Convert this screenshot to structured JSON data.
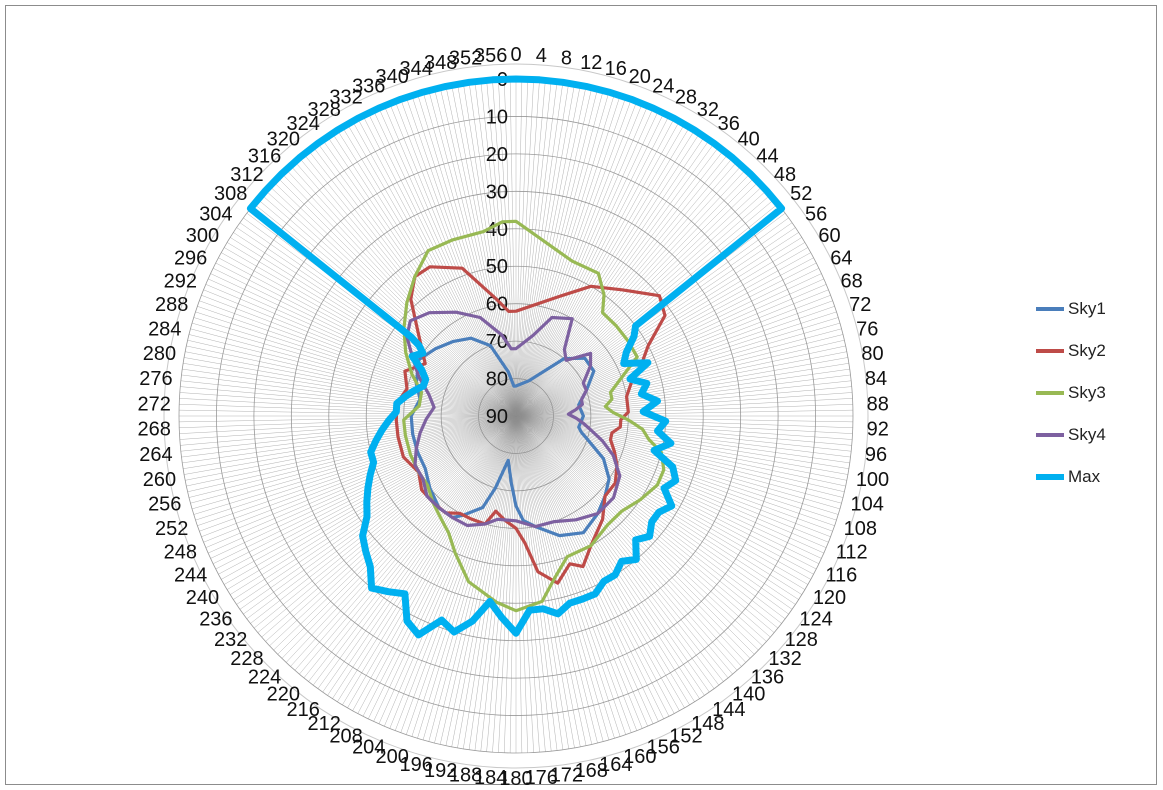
{
  "chart_data": {
    "type": "radar",
    "title": "",
    "angle_ticks": [
      0,
      4,
      8,
      12,
      16,
      20,
      24,
      28,
      32,
      36,
      40,
      44,
      48,
      52,
      56,
      60,
      64,
      68,
      72,
      76,
      80,
      84,
      88,
      92,
      96,
      100,
      104,
      108,
      112,
      116,
      120,
      124,
      128,
      132,
      136,
      140,
      144,
      148,
      152,
      156,
      160,
      164,
      168,
      172,
      176,
      180,
      184,
      188,
      192,
      196,
      200,
      204,
      208,
      212,
      216,
      220,
      224,
      228,
      232,
      236,
      240,
      244,
      248,
      252,
      256,
      260,
      264,
      268,
      272,
      276,
      280,
      284,
      288,
      292,
      296,
      300,
      304,
      308,
      312,
      316,
      320,
      324,
      328,
      332,
      336,
      340,
      344,
      348,
      352,
      356
    ],
    "radial_ticks": [
      0,
      10,
      20,
      30,
      40,
      50,
      60,
      70,
      80,
      90
    ],
    "radial_range": [
      0,
      90
    ],
    "radial_reversed": true,
    "grid": true,
    "legend_position": "right",
    "series": [
      {
        "name": "Sky1",
        "color": "#4a7ebb",
        "points": [
          [
            0,
            82
          ],
          [
            20,
            80
          ],
          [
            40,
            70
          ],
          [
            50,
            66
          ],
          [
            60,
            66
          ],
          [
            70,
            70
          ],
          [
            80,
            73
          ],
          [
            90,
            72
          ],
          [
            100,
            73
          ],
          [
            104,
            72
          ],
          [
            108,
            70
          ],
          [
            116,
            64
          ],
          [
            124,
            60
          ],
          [
            132,
            58
          ],
          [
            140,
            56
          ],
          [
            150,
            54
          ],
          [
            160,
            56
          ],
          [
            170,
            60
          ],
          [
            176,
            62
          ],
          [
            180,
            66
          ],
          [
            184,
            72
          ],
          [
            190,
            78
          ],
          [
            196,
            70
          ],
          [
            200,
            64
          ],
          [
            208,
            60
          ],
          [
            212,
            58
          ],
          [
            220,
            58
          ],
          [
            230,
            60
          ],
          [
            240,
            62
          ],
          [
            250,
            62
          ],
          [
            260,
            62
          ],
          [
            270,
            62
          ],
          [
            280,
            64
          ],
          [
            288,
            62
          ],
          [
            300,
            60
          ],
          [
            310,
            62
          ],
          [
            320,
            64
          ],
          [
            330,
            66
          ],
          [
            340,
            70
          ],
          [
            350,
            78
          ],
          [
            356,
            82
          ]
        ]
      },
      {
        "name": "Sky2",
        "color": "#be4b48",
        "points": [
          [
            0,
            62
          ],
          [
            20,
            56
          ],
          [
            30,
            50
          ],
          [
            40,
            46
          ],
          [
            50,
            40
          ],
          [
            56,
            42
          ],
          [
            62,
            50
          ],
          [
            68,
            54
          ],
          [
            74,
            58
          ],
          [
            80,
            60
          ],
          [
            88,
            60
          ],
          [
            92,
            62
          ],
          [
            96,
            62
          ],
          [
            100,
            64
          ],
          [
            104,
            64
          ],
          [
            110,
            62
          ],
          [
            116,
            60
          ],
          [
            124,
            58
          ],
          [
            132,
            58
          ],
          [
            140,
            54
          ],
          [
            150,
            50
          ],
          [
            156,
            46
          ],
          [
            160,
            48
          ],
          [
            166,
            44
          ],
          [
            172,
            48
          ],
          [
            176,
            56
          ],
          [
            180,
            60
          ],
          [
            186,
            62
          ],
          [
            192,
            64
          ],
          [
            196,
            60
          ],
          [
            204,
            60
          ],
          [
            210,
            60
          ],
          [
            216,
            58
          ],
          [
            224,
            58
          ],
          [
            232,
            58
          ],
          [
            240,
            60
          ],
          [
            250,
            58
          ],
          [
            260,
            58
          ],
          [
            268,
            58
          ],
          [
            276,
            58
          ],
          [
            284,
            60
          ],
          [
            292,
            58
          ],
          [
            300,
            62
          ],
          [
            310,
            56
          ],
          [
            318,
            48
          ],
          [
            324,
            44
          ],
          [
            330,
            44
          ],
          [
            340,
            48
          ],
          [
            350,
            58
          ],
          [
            356,
            62
          ]
        ]
      },
      {
        "name": "Sky3",
        "color": "#98b954",
        "points": [
          [
            0,
            38
          ],
          [
            20,
            46
          ],
          [
            30,
            46
          ],
          [
            36,
            50
          ],
          [
            40,
            54
          ],
          [
            48,
            54
          ],
          [
            56,
            54
          ],
          [
            64,
            54
          ],
          [
            70,
            60
          ],
          [
            76,
            64
          ],
          [
            80,
            64
          ],
          [
            84,
            66
          ],
          [
            88,
            64
          ],
          [
            92,
            60
          ],
          [
            96,
            56
          ],
          [
            100,
            54
          ],
          [
            104,
            50
          ],
          [
            110,
            48
          ],
          [
            116,
            48
          ],
          [
            124,
            50
          ],
          [
            132,
            52
          ],
          [
            140,
            52
          ],
          [
            150,
            50
          ],
          [
            160,
            50
          ],
          [
            166,
            46
          ],
          [
            172,
            40
          ],
          [
            180,
            38
          ],
          [
            186,
            40
          ],
          [
            196,
            44
          ],
          [
            204,
            50
          ],
          [
            210,
            54
          ],
          [
            216,
            56
          ],
          [
            224,
            58
          ],
          [
            232,
            60
          ],
          [
            240,
            60
          ],
          [
            250,
            60
          ],
          [
            260,
            60
          ],
          [
            268,
            60
          ],
          [
            276,
            64
          ],
          [
            284,
            64
          ],
          [
            292,
            60
          ],
          [
            300,
            56
          ],
          [
            308,
            52
          ],
          [
            316,
            48
          ],
          [
            324,
            44
          ],
          [
            332,
            40
          ],
          [
            340,
            40
          ],
          [
            350,
            40
          ],
          [
            356,
            38
          ]
        ]
      },
      {
        "name": "Sky4",
        "color": "#7d60a0",
        "points": [
          [
            0,
            72
          ],
          [
            12,
            68
          ],
          [
            20,
            62
          ],
          [
            30,
            60
          ],
          [
            36,
            68
          ],
          [
            42,
            70
          ],
          [
            50,
            64
          ],
          [
            56,
            66
          ],
          [
            64,
            70
          ],
          [
            70,
            70
          ],
          [
            76,
            72
          ],
          [
            80,
            72
          ],
          [
            84,
            74
          ],
          [
            88,
            76
          ],
          [
            92,
            74
          ],
          [
            96,
            72
          ],
          [
            100,
            70
          ],
          [
            106,
            66
          ],
          [
            112,
            62
          ],
          [
            120,
            58
          ],
          [
            130,
            56
          ],
          [
            140,
            56
          ],
          [
            150,
            58
          ],
          [
            160,
            60
          ],
          [
            170,
            60
          ],
          [
            180,
            62
          ],
          [
            190,
            62
          ],
          [
            196,
            60
          ],
          [
            204,
            58
          ],
          [
            212,
            58
          ],
          [
            220,
            58
          ],
          [
            228,
            58
          ],
          [
            236,
            60
          ],
          [
            244,
            60
          ],
          [
            252,
            62
          ],
          [
            260,
            64
          ],
          [
            268,
            66
          ],
          [
            276,
            68
          ],
          [
            284,
            66
          ],
          [
            292,
            62
          ],
          [
            300,
            58
          ],
          [
            306,
            54
          ],
          [
            312,
            52
          ],
          [
            320,
            54
          ],
          [
            330,
            58
          ],
          [
            340,
            62
          ],
          [
            350,
            68
          ],
          [
            356,
            72
          ]
        ]
      },
      {
        "name": "Max",
        "color": "#00b0f0",
        "points": [
          [
            0,
            0
          ],
          [
            4,
            0
          ],
          [
            8,
            0
          ],
          [
            12,
            0
          ],
          [
            16,
            0
          ],
          [
            20,
            0
          ],
          [
            24,
            0
          ],
          [
            28,
            0
          ],
          [
            32,
            0
          ],
          [
            36,
            0
          ],
          [
            40,
            0
          ],
          [
            44,
            0
          ],
          [
            48,
            0
          ],
          [
            52,
            0
          ],
          [
            53,
            50
          ],
          [
            56,
            52
          ],
          [
            60,
            56
          ],
          [
            64,
            58
          ],
          [
            68,
            52
          ],
          [
            72,
            58
          ],
          [
            76,
            54
          ],
          [
            80,
            56
          ],
          [
            84,
            52
          ],
          [
            88,
            56
          ],
          [
            92,
            50
          ],
          [
            96,
            52
          ],
          [
            100,
            48
          ],
          [
            104,
            52
          ],
          [
            108,
            46
          ],
          [
            112,
            44
          ],
          [
            116,
            46
          ],
          [
            120,
            42
          ],
          [
            124,
            44
          ],
          [
            128,
            44
          ],
          [
            132,
            42
          ],
          [
            136,
            44
          ],
          [
            140,
            40
          ],
          [
            144,
            42
          ],
          [
            148,
            40
          ],
          [
            152,
            40
          ],
          [
            156,
            38
          ],
          [
            160,
            38
          ],
          [
            164,
            38
          ],
          [
            168,
            36
          ],
          [
            172,
            38
          ],
          [
            176,
            38
          ],
          [
            180,
            32
          ],
          [
            184,
            36
          ],
          [
            188,
            40
          ],
          [
            192,
            34
          ],
          [
            196,
            30
          ],
          [
            200,
            32
          ],
          [
            204,
            26
          ],
          [
            208,
            28
          ],
          [
            212,
            34
          ],
          [
            216,
            32
          ],
          [
            220,
            30
          ],
          [
            224,
            34
          ],
          [
            228,
            36
          ],
          [
            232,
            38
          ],
          [
            236,
            42
          ],
          [
            240,
            44
          ],
          [
            244,
            46
          ],
          [
            248,
            48
          ],
          [
            252,
            50
          ],
          [
            256,
            50
          ],
          [
            260,
            52
          ],
          [
            264,
            54
          ],
          [
            268,
            56
          ],
          [
            272,
            58
          ],
          [
            276,
            58
          ],
          [
            280,
            60
          ],
          [
            284,
            62
          ],
          [
            288,
            64
          ],
          [
            292,
            64
          ],
          [
            296,
            62
          ],
          [
            300,
            58
          ],
          [
            304,
            60
          ],
          [
            306,
            58
          ],
          [
            307,
            55
          ],
          [
            308,
            0
          ],
          [
            312,
            0
          ],
          [
            316,
            0
          ],
          [
            320,
            0
          ],
          [
            324,
            0
          ],
          [
            328,
            0
          ],
          [
            332,
            0
          ],
          [
            336,
            0
          ],
          [
            340,
            0
          ],
          [
            344,
            0
          ],
          [
            348,
            0
          ],
          [
            352,
            0
          ],
          [
            356,
            0
          ]
        ]
      }
    ]
  }
}
